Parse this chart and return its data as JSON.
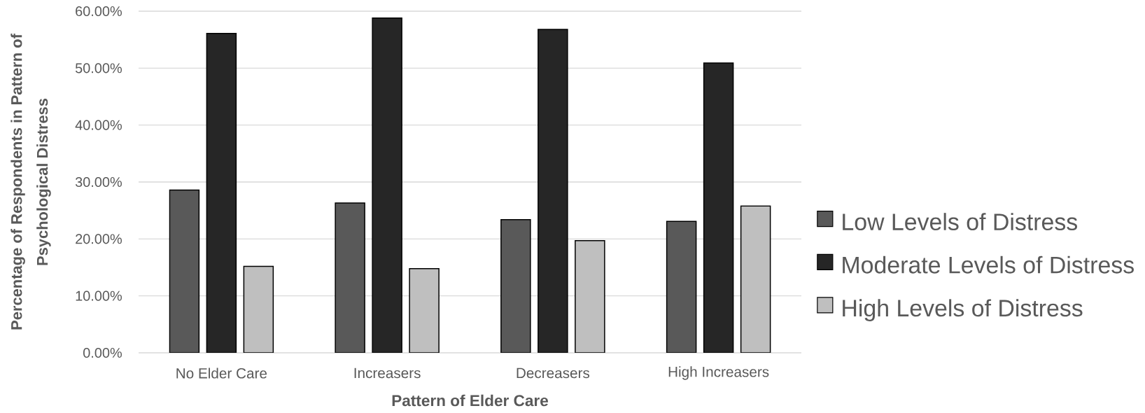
{
  "chart_data": {
    "type": "bar",
    "xlabel": "Pattern of Elder Care",
    "ylabel": "Percentage of Respondents in Pattern of Psychological Distress",
    "categories": [
      "No Elder Care",
      "Increasers",
      "Decreasers",
      "High Increasers"
    ],
    "series": [
      {
        "name": "Low Levels of Distress",
        "color": "#595959",
        "values": [
          28.6,
          26.3,
          23.4,
          23.1
        ]
      },
      {
        "name": "Moderate Levels of Distress",
        "color": "#262626",
        "values": [
          56.1,
          58.8,
          56.8,
          50.9
        ]
      },
      {
        "name": "High Levels of Distress",
        "color": "#bfbfbf",
        "values": [
          15.2,
          14.8,
          19.7,
          25.8
        ]
      }
    ],
    "ylim": [
      0,
      60
    ],
    "yticks": [
      {
        "value": 0,
        "label": "0.00%"
      },
      {
        "value": 10,
        "label": "10.00%"
      },
      {
        "value": 20,
        "label": "20.00%"
      },
      {
        "value": 30,
        "label": "30.00%"
      },
      {
        "value": 40,
        "label": "40.00%"
      },
      {
        "value": 50,
        "label": "50.00%"
      },
      {
        "value": 60,
        "label": "60.00%"
      }
    ],
    "grid": "y",
    "legend": "right"
  }
}
